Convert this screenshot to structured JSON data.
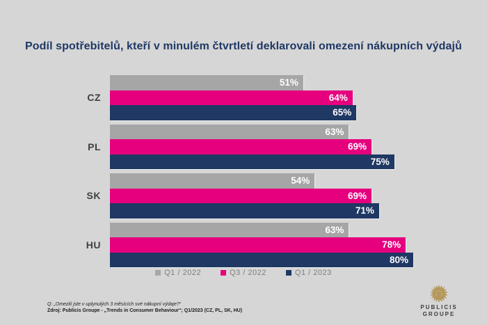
{
  "title": "Podíl spotřebitelů, kteří v minulém čtvrtletí deklarovali omezení nákupních výdajů",
  "chart_data": {
    "type": "bar",
    "orientation": "horizontal",
    "title": "Podíl spotřebitelů, kteří v minulém čtvrtletí deklarovali omezení nákupních výdajů",
    "categories": [
      "CZ",
      "PL",
      "SK",
      "HU"
    ],
    "series": [
      {
        "name": "Q1 / 2022",
        "color": "#a6a6a6",
        "values": [
          51,
          63,
          54,
          63
        ]
      },
      {
        "name": "Q3 / 2022",
        "color": "#e6007e",
        "values": [
          64,
          69,
          69,
          78
        ]
      },
      {
        "name": "Q1 / 2023",
        "color": "#1f3864",
        "values": [
          65,
          75,
          71,
          80
        ]
      }
    ],
    "value_suffix": "%",
    "xlim": [
      0,
      100
    ],
    "data_labels": "inside-end-white-bold",
    "grid": false,
    "legend_position": "bottom"
  },
  "footnote": {
    "line1": "Q: „Omezili jste v uplynulých 3 měsících své nákupní výdaje?“",
    "line2": "Zdroj: Publicis Groupe - „Trends in Consumer Behaviour“; Q1/2023 (CZ, PL, SK, HU)"
  },
  "logo": {
    "icon": "lion-sun-emblem-icon",
    "icon_color": "#b5985a",
    "line1": "PUBLICIS",
    "line2": "GROUPE"
  },
  "colors": {
    "background": "#d6d6d6",
    "title_text": "#1f3864",
    "category_text": "#3f3f3f",
    "legend_text": "#7d7d7d",
    "bar_value_text": "#ffffff"
  }
}
